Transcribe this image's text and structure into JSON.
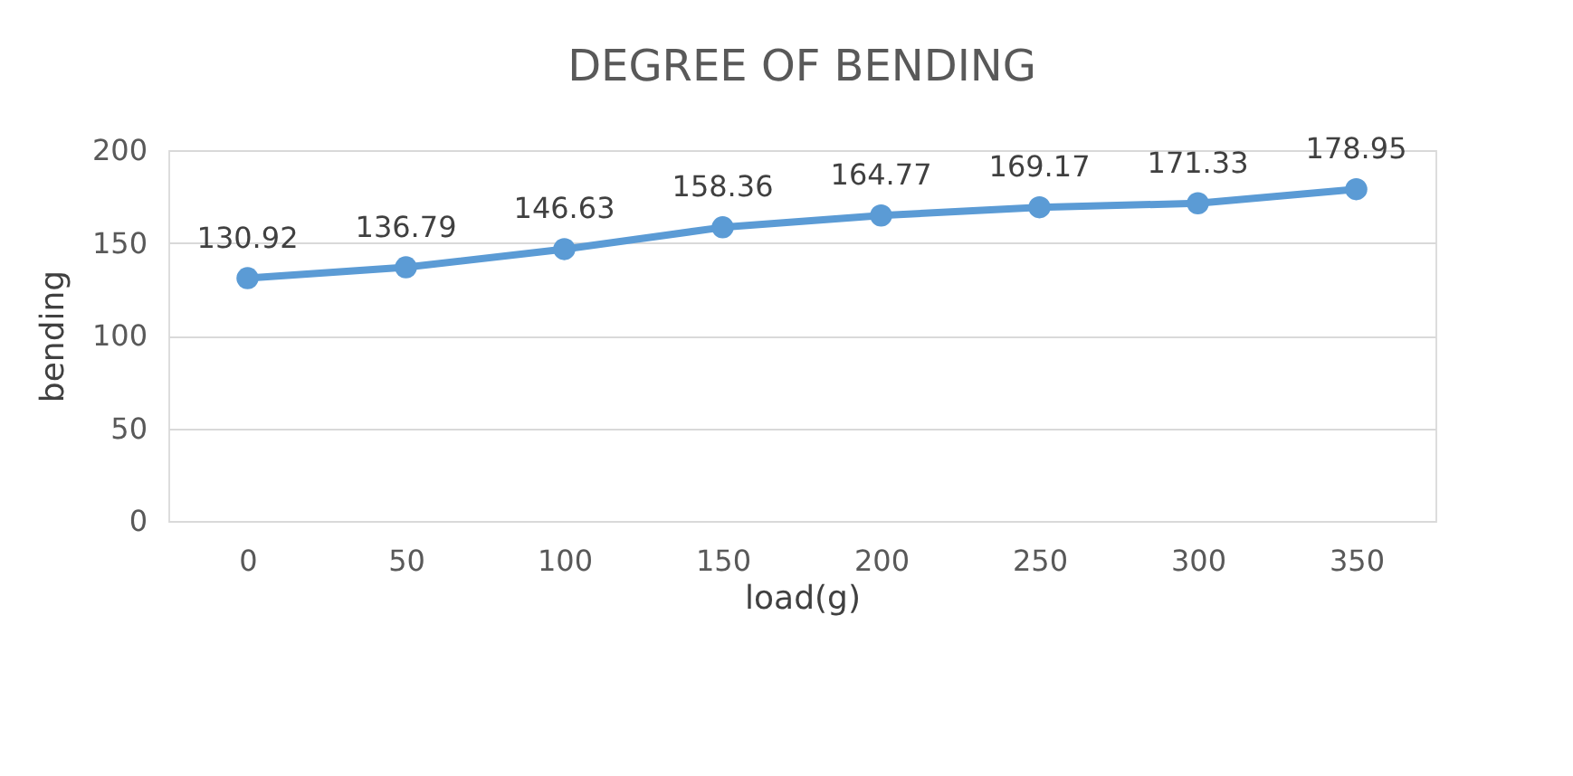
{
  "chart_data": {
    "type": "line",
    "title": "DEGREE OF BENDING",
    "xlabel": "load(g)",
    "ylabel": "bending",
    "categories": [
      "0",
      "50",
      "100",
      "150",
      "200",
      "250",
      "300",
      "350"
    ],
    "series": [
      {
        "color": "#5b9bd5",
        "values": [
          130.92,
          136.79,
          146.63,
          158.36,
          164.77,
          169.17,
          171.33,
          178.95
        ]
      }
    ],
    "ylim": [
      0,
      200
    ],
    "yticks": [
      0,
      50,
      100,
      150,
      200
    ],
    "grid": "y",
    "marker": "circle",
    "line_style": "solid",
    "data_labels": true
  }
}
